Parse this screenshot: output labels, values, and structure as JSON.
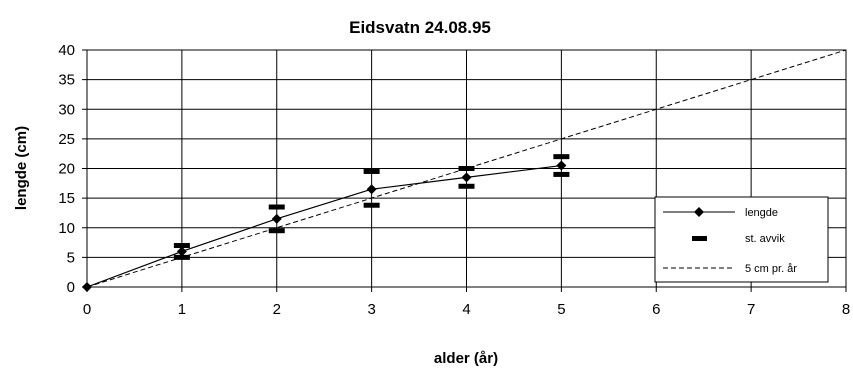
{
  "chart_data": {
    "type": "line",
    "title": "Eidsvatn 24.08.95",
    "xlabel": "alder (år)",
    "ylabel": "lengde (cm)",
    "xlim": [
      0,
      8
    ],
    "ylim": [
      0,
      40
    ],
    "x_ticks": [
      "0",
      "1",
      "2",
      "3",
      "4",
      "5",
      "6",
      "7",
      "8"
    ],
    "y_ticks": [
      "0",
      "5",
      "10",
      "15",
      "20",
      "25",
      "30",
      "35",
      "40"
    ],
    "grid": true,
    "legend_position": "bottom-right",
    "series": [
      {
        "name": "lengde",
        "style": "solid-line-diamond",
        "color": "#000000",
        "x": [
          0,
          1,
          2,
          3,
          4,
          5
        ],
        "y": [
          0,
          6,
          11.5,
          16.5,
          18.5,
          20.5
        ]
      },
      {
        "name": "st. avvik",
        "style": "dash-marker",
        "color": "#000000",
        "points": [
          {
            "x": 1,
            "y": 7
          },
          {
            "x": 1,
            "y": 5
          },
          {
            "x": 2,
            "y": 13.5
          },
          {
            "x": 2,
            "y": 9.5
          },
          {
            "x": 3,
            "y": 19.5
          },
          {
            "x": 3,
            "y": 13.8
          },
          {
            "x": 4,
            "y": 20
          },
          {
            "x": 4,
            "y": 17
          },
          {
            "x": 5,
            "y": 22
          },
          {
            "x": 5,
            "y": 19
          }
        ]
      },
      {
        "name": "5 cm pr. år",
        "style": "dashed-line",
        "color": "#000000",
        "x": [
          0,
          8
        ],
        "y": [
          0,
          40
        ]
      }
    ]
  }
}
